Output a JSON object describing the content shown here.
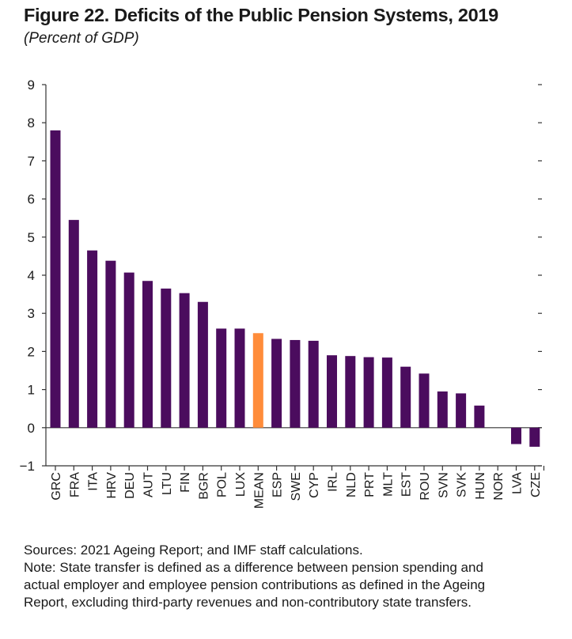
{
  "title": "Figure 22. Deficits of the Public Pension Systems, 2019",
  "subtitle": "(Percent of GDP)",
  "colors": {
    "bar": "#4b0c5e",
    "highlight": "#ff8c3a",
    "axis": "#333333"
  },
  "chart_data": {
    "type": "bar",
    "categories": [
      "GRC",
      "FRA",
      "ITA",
      "HRV",
      "DEU",
      "AUT",
      "LTU",
      "FIN",
      "BGR",
      "POL",
      "LUX",
      "MEAN",
      "ESP",
      "SWE",
      "CYP",
      "IRL",
      "NLD",
      "PRT",
      "MLT",
      "EST",
      "ROU",
      "SVN",
      "SVK",
      "HUN",
      "NOR",
      "LVA",
      "CZE"
    ],
    "values": [
      7.8,
      5.45,
      4.65,
      4.38,
      4.07,
      3.85,
      3.65,
      3.53,
      3.3,
      2.6,
      2.6,
      2.48,
      2.33,
      2.3,
      2.28,
      1.9,
      1.88,
      1.85,
      1.84,
      1.6,
      1.42,
      0.95,
      0.9,
      0.58,
      0,
      -0.43,
      -0.5
    ],
    "highlight_category": "MEAN",
    "ylim": [
      -1,
      9
    ],
    "yticks": [
      "−1",
      "0",
      "1",
      "2",
      "3",
      "4",
      "5",
      "6",
      "7",
      "8",
      "9"
    ],
    "xlabel": "",
    "ylabel": "",
    "grid": false,
    "legend": "none"
  },
  "notes": {
    "sources": "Sources: 2021 Ageing Report; and IMF staff calculations.",
    "note_lines": [
      "Note: State transfer is defined as a difference between pension spending and",
      "actual employer and employee pension contributions as defined in the Ageing",
      "Report, excluding third-party revenues and non-contributory state transfers."
    ]
  }
}
